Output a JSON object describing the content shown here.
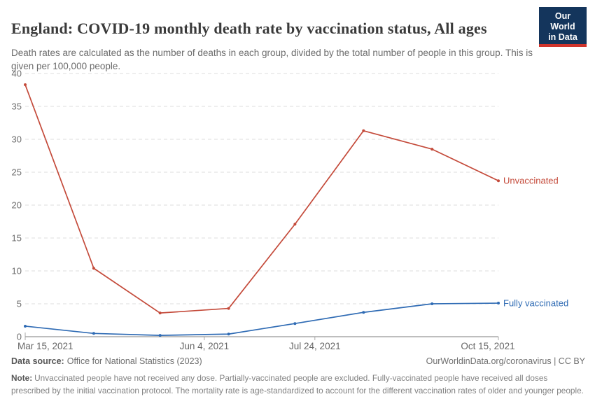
{
  "header": {
    "title": "England: COVID-19 monthly death rate by vaccination status, All ages",
    "subtitle": "Death rates are calculated as the number of deaths in each group, divided by the total number of people in this group. This is given per 100,000 people.",
    "logo": {
      "line1": "Our World",
      "line2": "in Data",
      "bg_color": "#14355c",
      "accent_color": "#d0342c"
    }
  },
  "chart_data": {
    "type": "line",
    "title": "England: COVID-19 monthly death rate by vaccination status, All ages",
    "xlabel": "",
    "ylabel": "",
    "ylim": [
      0,
      40
    ],
    "y_ticks": [
      0,
      5,
      10,
      15,
      20,
      25,
      30,
      35,
      40
    ],
    "grid": "horizontal-dashed",
    "legend_position": "right-end-labels",
    "x": [
      "Mar 15, 2021",
      "Apr 15, 2021",
      "May 15, 2021",
      "Jun 15, 2021",
      "Jul 15, 2021",
      "Aug 15, 2021",
      "Sep 15, 2021",
      "Oct 15, 2021"
    ],
    "x_days": [
      0,
      31,
      61,
      92,
      122,
      153,
      184,
      214
    ],
    "x_ticks": [
      {
        "label": "Mar 15, 2021",
        "day": 0,
        "align": "start"
      },
      {
        "label": "Jun 4, 2021",
        "day": 81,
        "align": "middle"
      },
      {
        "label": "Jul 24, 2021",
        "day": 131,
        "align": "middle"
      },
      {
        "label": "Oct 15, 2021",
        "day": 214,
        "align": "middle"
      }
    ],
    "series": [
      {
        "name": "Unvaccinated",
        "color": "#c44a3a",
        "values": [
          38.3,
          10.4,
          3.6,
          4.3,
          17.1,
          31.3,
          28.5,
          23.7
        ]
      },
      {
        "name": "Fully vaccinated",
        "color": "#2f6bb4",
        "values": [
          1.6,
          0.5,
          0.2,
          0.4,
          2.0,
          3.7,
          5.0,
          5.1
        ]
      }
    ]
  },
  "footer": {
    "source_label": "Data source:",
    "source_value": "Office for National Statistics (2023)",
    "rights": "OurWorldinData.org/coronavirus | CC BY",
    "note_label": "Note:",
    "note_value": "Unvaccinated people have not received any dose. Partially-vaccinated people are excluded. Fully-vaccinated people have received all doses prescribed by the initial vaccination protocol. The mortality rate is age-standardized to account for the different vaccination rates of older and younger people."
  }
}
